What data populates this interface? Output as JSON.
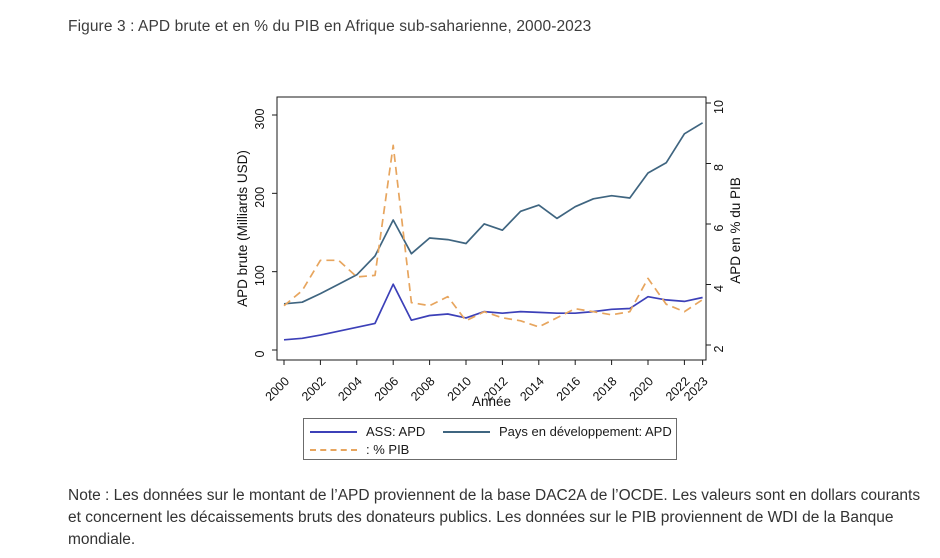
{
  "figure": {
    "title": "Figure 3 : APD brute et en % du PIB en Afrique sub-saharienne, 2000-2023",
    "note": "Note : Les données sur le montant de l’APD proviennent de la base DAC2A de l’OCDE. Les valeurs sont en dollars courants et concernent les décaissements bruts des donateurs publics. Les données sur le PIB proviennent de WDI de la Banque mondiale."
  },
  "chart_data": {
    "type": "line",
    "x": [
      2000,
      2001,
      2002,
      2003,
      2004,
      2005,
      2006,
      2007,
      2008,
      2009,
      2010,
      2011,
      2012,
      2013,
      2014,
      2015,
      2016,
      2017,
      2018,
      2019,
      2020,
      2021,
      2022,
      2023
    ],
    "xlabel": "Année",
    "x_ticks": [
      2000,
      2002,
      2004,
      2006,
      2008,
      2010,
      2012,
      2014,
      2016,
      2018,
      2020,
      2022,
      2023
    ],
    "ylabel_left": "APD brute (Milliards USD)",
    "ylabel_right": "APD en % du PIB",
    "ylim_left": [
      0,
      300
    ],
    "yticks_left": [
      0,
      100,
      200,
      300
    ],
    "ylim_right": [
      2,
      10
    ],
    "yticks_right": [
      2,
      4,
      6,
      8,
      10
    ],
    "grid": false,
    "legend_position": "bottom",
    "series": [
      {
        "name": "ASS: APD",
        "axis": "left",
        "style": "solid",
        "color": "#3c40b8",
        "values": [
          13,
          15,
          19,
          24,
          29,
          34,
          84,
          38,
          44,
          46,
          41,
          49,
          47,
          49,
          48,
          47,
          47,
          49,
          52,
          53,
          68,
          64,
          62,
          67
        ]
      },
      {
        "name": "Pays en développement: APD",
        "axis": "left",
        "style": "solid",
        "color": "#3f6580",
        "values": [
          59,
          61,
          72,
          84,
          96,
          120,
          166,
          123,
          143,
          141,
          136,
          161,
          153,
          177,
          185,
          168,
          183,
          193,
          197,
          194,
          226,
          239,
          276,
          290
        ]
      },
      {
        "name": ": % PIB",
        "axis": "right",
        "style": "dashed",
        "color": "#e7a55e",
        "values": [
          3.3,
          3.8,
          4.8,
          4.8,
          4.25,
          4.3,
          8.6,
          3.4,
          3.3,
          3.6,
          2.8,
          3.1,
          2.9,
          2.8,
          2.6,
          2.9,
          3.2,
          3.1,
          3.0,
          3.1,
          4.2,
          3.35,
          3.1,
          3.5
        ]
      }
    ]
  }
}
